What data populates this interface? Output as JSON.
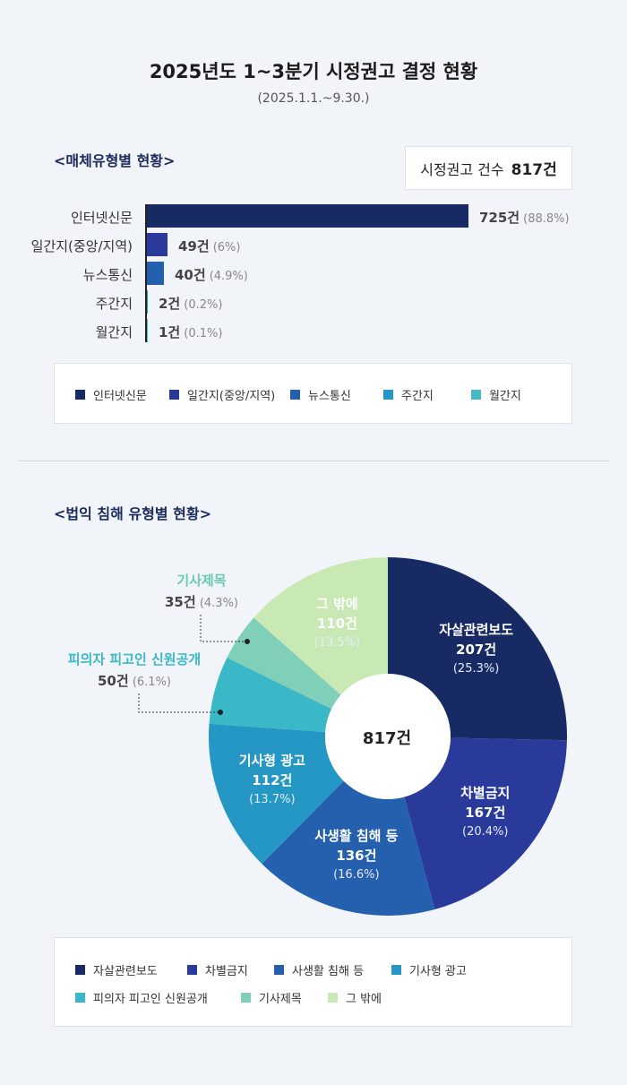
{
  "title": "2025년도 1~3분기 시정권고 결정 현황",
  "subtitle": "(2025.1.1.~9.30.)",
  "section1": {
    "heading": "<매체유형별 현황>",
    "total_label": "시정권고 건수",
    "total_value": "817건"
  },
  "section2": {
    "heading": "<법익 침해 유형별 현황>",
    "center_total": "817건"
  },
  "chart_data": [
    {
      "type": "bar",
      "orientation": "horizontal",
      "categories": [
        "인터넷신문",
        "일간지(중앙/지역)",
        "뉴스통신",
        "주간지",
        "월간지"
      ],
      "values": [
        725,
        49,
        40,
        2,
        1
      ],
      "value_labels": [
        "725건",
        "49건",
        "40건",
        "2건",
        "1건"
      ],
      "percent_labels": [
        "(88.8%)",
        "(6%)",
        "(4.9%)",
        "(0.2%)",
        "(0.1%)"
      ],
      "colors": [
        "#172a63",
        "#2a3a9b",
        "#2460ad",
        "#2497c4",
        "#46b9c6"
      ],
      "legend": [
        "인터넷신문",
        "일간지(중앙/지역)",
        "뉴스통신",
        "주간지",
        "월간지"
      ],
      "legend_position": "bottom"
    },
    {
      "type": "pie",
      "donut": true,
      "categories": [
        "자살관련보도",
        "차별금지",
        "사생활 침해 등",
        "기사형 광고",
        "피의자 피고인 신원공개",
        "기사제목",
        "그 밖에"
      ],
      "values": [
        207,
        167,
        136,
        112,
        50,
        35,
        110
      ],
      "value_labels": [
        "207건",
        "167건",
        "136건",
        "112건",
        "50건",
        "35건",
        "110건"
      ],
      "percent_labels": [
        "(25.3%)",
        "(20.4%)",
        "(16.6%)",
        "(13.7%)",
        "(6.1%)",
        "(4.3%)",
        "(13.5%)"
      ],
      "colors": [
        "#172a63",
        "#2a3a9b",
        "#2460ad",
        "#2497c4",
        "#3bb8c7",
        "#7fcfb9",
        "#c8e9b4"
      ],
      "legend": [
        "자살관련보도",
        "차별금지",
        "사생활 침해 등",
        "기사형 광고",
        "피의자 피고인 신원공개",
        "기사제목",
        "그 밖에"
      ],
      "legend_position": "bottom"
    }
  ]
}
